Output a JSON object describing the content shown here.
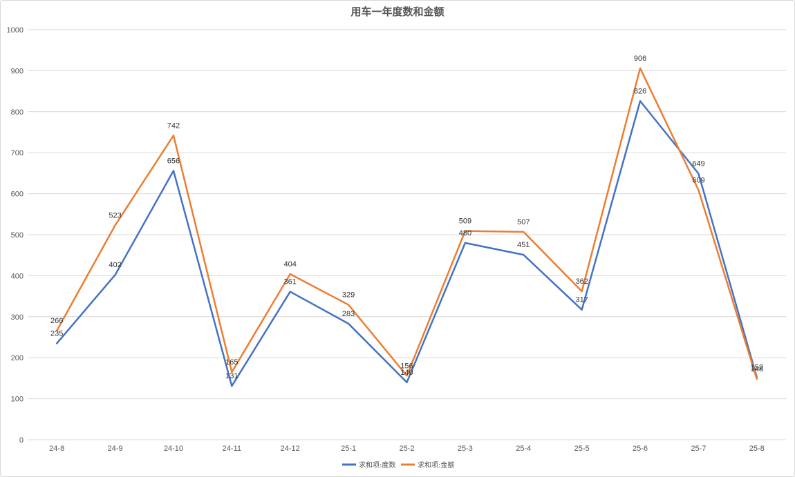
{
  "chart_data": {
    "type": "line",
    "title": "用车一年度数和金额",
    "categories": [
      "24-8",
      "24-9",
      "24-10",
      "24-11",
      "24-12",
      "25-1",
      "25-2",
      "25-3",
      "25-4",
      "25-5",
      "25-6",
      "25-7",
      "25-8"
    ],
    "series": [
      {
        "name": "求和项:度数",
        "values": [
          235,
          402,
          656,
          131,
          361,
          283,
          140,
          480,
          451,
          317,
          826,
          649,
          152
        ],
        "color": "#4472c4"
      },
      {
        "name": "求和项:金额",
        "values": [
          266,
          523,
          742,
          165,
          404,
          329,
          156,
          509,
          507,
          362,
          906,
          609,
          148
        ],
        "color": "#ed7d31"
      }
    ],
    "ylim": [
      0,
      1000
    ],
    "yticks": [
      0,
      100,
      200,
      300,
      400,
      500,
      600,
      700,
      800,
      900,
      1000
    ],
    "grid": true,
    "legend": "bottom",
    "data_labels": true
  }
}
